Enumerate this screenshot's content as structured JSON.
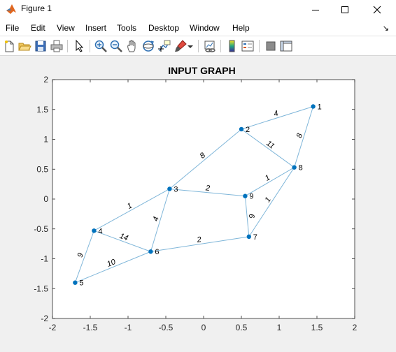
{
  "window": {
    "title": "Figure 1"
  },
  "menu": {
    "items": [
      "File",
      "Edit",
      "View",
      "Insert",
      "Tools",
      "Desktop",
      "Window",
      "Help"
    ],
    "overflow_arrow": "↘"
  },
  "toolbar": {
    "icons": [
      "new-figure-icon",
      "open-file-icon",
      "save-icon",
      "print-icon",
      "pointer-icon",
      "zoom-in-icon",
      "zoom-out-icon",
      "pan-icon",
      "rotate-3d-icon",
      "data-cursor-icon",
      "brush-icon",
      "link-plot-icon",
      "colorbar-icon",
      "legend-icon",
      "hide-plot-tools-icon",
      "show-plot-tools-icon"
    ]
  },
  "chart_data": {
    "type": "graph",
    "title": "INPUT GRAPH",
    "xlim": [
      -2,
      2
    ],
    "ylim": [
      -2,
      2
    ],
    "xticks": [
      "-2",
      "-1.5",
      "-1",
      "-0.5",
      "0",
      "0.5",
      "1",
      "1.5",
      "2"
    ],
    "yticks": [
      "2",
      "1.5",
      "1",
      "0.5",
      "0",
      "-0.5",
      "-1",
      "-1.5",
      "-2"
    ],
    "node_color": "#0072bd",
    "edge_color": "#7fb6d9",
    "nodes": [
      {
        "label": "1",
        "x": 1.45,
        "y": 1.55
      },
      {
        "label": "2",
        "x": 0.5,
        "y": 1.17
      },
      {
        "label": "3",
        "x": -0.45,
        "y": 0.17
      },
      {
        "label": "4",
        "x": -1.45,
        "y": -0.53
      },
      {
        "label": "5",
        "x": -1.7,
        "y": -1.4
      },
      {
        "label": "6",
        "x": -0.7,
        "y": -0.88
      },
      {
        "label": "7",
        "x": 0.6,
        "y": -0.63
      },
      {
        "label": "8",
        "x": 1.2,
        "y": 0.53
      },
      {
        "label": "9",
        "x": 0.55,
        "y": 0.05
      }
    ],
    "edges": [
      {
        "from": "1",
        "to": "2",
        "weight": "4"
      },
      {
        "from": "1",
        "to": "8",
        "weight": "8"
      },
      {
        "from": "2",
        "to": "8",
        "weight": "11"
      },
      {
        "from": "2",
        "to": "3",
        "weight": "8"
      },
      {
        "from": "3",
        "to": "9",
        "weight": "2"
      },
      {
        "from": "3",
        "to": "4",
        "weight": "1"
      },
      {
        "from": "3",
        "to": "6",
        "weight": "4"
      },
      {
        "from": "9",
        "to": "8",
        "weight": "1"
      },
      {
        "from": "9",
        "to": "7",
        "weight": "6"
      },
      {
        "from": "8",
        "to": "7",
        "weight": "1"
      },
      {
        "from": "4",
        "to": "6",
        "weight": "14"
      },
      {
        "from": "4",
        "to": "5",
        "weight": "9"
      },
      {
        "from": "5",
        "to": "6",
        "weight": "10"
      },
      {
        "from": "6",
        "to": "7",
        "weight": "2"
      }
    ]
  }
}
